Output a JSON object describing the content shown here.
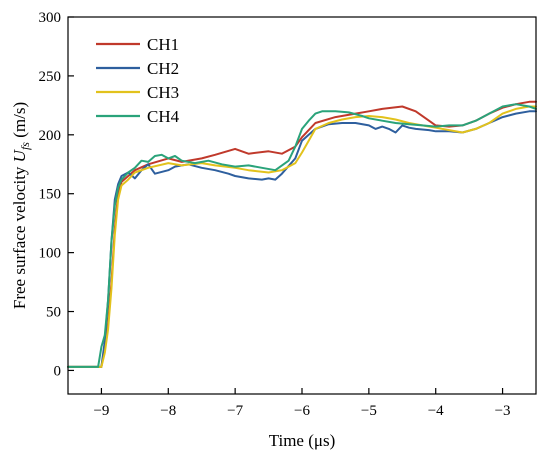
{
  "chart_data": {
    "type": "line",
    "xlabel": "Time (μs)",
    "ylabel": {
      "prefix": "Free surface velocity ",
      "symbol": "U",
      "subscript": "fs",
      "suffix": " (m/s)"
    },
    "xlim": [
      -9.5,
      -2.5
    ],
    "ylim": [
      -20,
      300
    ],
    "xticks": [
      -9,
      -8,
      -7,
      -6,
      -5,
      -4,
      -3
    ],
    "xtick_labels": [
      "−9",
      "−8",
      "−7",
      "−6",
      "−5",
      "−4",
      "−3"
    ],
    "yticks": [
      0,
      50,
      100,
      150,
      200,
      250,
      300
    ],
    "ytick_labels": [
      "0",
      "50",
      "100",
      "150",
      "200",
      "250",
      "300"
    ],
    "grid": false,
    "legend_position": "top-left",
    "series": [
      {
        "name": "CH1",
        "color": "#c0392b",
        "x": [
          -9.5,
          -9.0,
          -8.95,
          -8.9,
          -8.85,
          -8.8,
          -8.75,
          -8.7,
          -8.6,
          -8.5,
          -8.3,
          -8.0,
          -7.8,
          -7.5,
          -7.3,
          -7.0,
          -6.8,
          -6.5,
          -6.3,
          -6.1,
          -6.0,
          -5.8,
          -5.5,
          -5.2,
          -5.0,
          -4.8,
          -4.5,
          -4.3,
          -4.1,
          -4.0,
          -3.8,
          -3.6,
          -3.4,
          -3.2,
          -3.0,
          -2.8,
          -2.6,
          -2.5
        ],
        "y": [
          3,
          3,
          20,
          40,
          75,
          120,
          150,
          160,
          165,
          170,
          175,
          180,
          177,
          180,
          183,
          188,
          184,
          186,
          184,
          190,
          198,
          210,
          215,
          218,
          220,
          222,
          224,
          220,
          212,
          208,
          207,
          208,
          212,
          218,
          223,
          226,
          228,
          228
        ]
      },
      {
        "name": "CH2",
        "color": "#2e5f9e",
        "x": [
          -9.5,
          -9.0,
          -8.95,
          -8.9,
          -8.85,
          -8.8,
          -8.75,
          -8.7,
          -8.6,
          -8.5,
          -8.4,
          -8.3,
          -8.2,
          -8.0,
          -7.9,
          -7.7,
          -7.5,
          -7.3,
          -7.1,
          -7.0,
          -6.8,
          -6.6,
          -6.5,
          -6.4,
          -6.3,
          -6.1,
          -6.0,
          -5.9,
          -5.8,
          -5.6,
          -5.4,
          -5.2,
          -5.0,
          -4.9,
          -4.8,
          -4.7,
          -4.6,
          -4.5,
          -4.4,
          -4.3,
          -4.1,
          -4.0,
          -3.8,
          -3.6,
          -3.4,
          -3.2,
          -3.0,
          -2.8,
          -2.6,
          -2.5
        ],
        "y": [
          3,
          3,
          25,
          60,
          110,
          145,
          158,
          165,
          168,
          163,
          170,
          175,
          167,
          170,
          173,
          175,
          172,
          170,
          167,
          165,
          163,
          162,
          163,
          162,
          167,
          180,
          195,
          200,
          205,
          209,
          210,
          210,
          208,
          205,
          207,
          205,
          202,
          208,
          206,
          205,
          204,
          203,
          203,
          202,
          205,
          210,
          215,
          218,
          220,
          220
        ]
      },
      {
        "name": "CH3",
        "color": "#e2c21c",
        "x": [
          -9.5,
          -9.0,
          -8.95,
          -8.9,
          -8.85,
          -8.8,
          -8.75,
          -8.7,
          -8.6,
          -8.5,
          -8.3,
          -8.0,
          -7.8,
          -7.5,
          -7.3,
          -7.0,
          -6.8,
          -6.5,
          -6.3,
          -6.1,
          -6.0,
          -5.9,
          -5.8,
          -5.6,
          -5.4,
          -5.2,
          -5.0,
          -4.8,
          -4.6,
          -4.4,
          -4.2,
          -4.0,
          -3.8,
          -3.6,
          -3.4,
          -3.2,
          -3.0,
          -2.8,
          -2.6,
          -2.5
        ],
        "y": [
          3,
          3,
          15,
          35,
          70,
          115,
          145,
          157,
          162,
          168,
          172,
          176,
          174,
          176,
          174,
          172,
          170,
          168,
          170,
          176,
          185,
          195,
          205,
          210,
          213,
          215,
          216,
          215,
          213,
          210,
          208,
          206,
          204,
          202,
          205,
          210,
          218,
          222,
          224,
          224
        ]
      },
      {
        "name": "CH4",
        "color": "#2aa37a",
        "x": [
          -9.5,
          -9.05,
          -9.0,
          -8.95,
          -8.9,
          -8.85,
          -8.8,
          -8.75,
          -8.7,
          -8.6,
          -8.5,
          -8.4,
          -8.3,
          -8.2,
          -8.1,
          -8.0,
          -7.9,
          -7.8,
          -7.6,
          -7.4,
          -7.2,
          -7.0,
          -6.8,
          -6.6,
          -6.4,
          -6.2,
          -6.1,
          -6.0,
          -5.9,
          -5.8,
          -5.7,
          -5.5,
          -5.3,
          -5.1,
          -5.0,
          -4.8,
          -4.6,
          -4.4,
          -4.2,
          -4.0,
          -3.8,
          -3.6,
          -3.4,
          -3.2,
          -3.0,
          -2.8,
          -2.6,
          -2.5
        ],
        "y": [
          3,
          3,
          20,
          30,
          60,
          110,
          140,
          155,
          162,
          168,
          172,
          178,
          177,
          182,
          183,
          180,
          182,
          178,
          176,
          178,
          175,
          173,
          174,
          172,
          170,
          178,
          190,
          205,
          212,
          218,
          220,
          220,
          219,
          216,
          214,
          212,
          210,
          209,
          208,
          207,
          208,
          208,
          212,
          218,
          224,
          226,
          224,
          222
        ]
      }
    ]
  }
}
